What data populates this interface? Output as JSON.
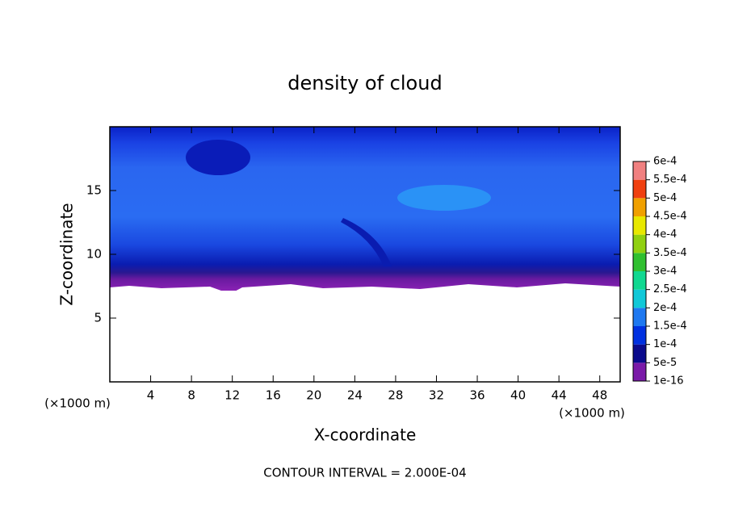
{
  "chart_data": {
    "type": "contour",
    "title": "density of cloud",
    "x_label": "X-coordinate",
    "y_label": "Z-coordinate",
    "x_unit": "(×1000 m)",
    "y_unit": "(×1000 m)",
    "footer": "CONTOUR INTERVAL = 2.000E-04",
    "xlim": [
      0,
      50
    ],
    "ylim": [
      0,
      20
    ],
    "xticks": [
      4,
      8,
      12,
      16,
      20,
      24,
      28,
      32,
      36,
      40,
      44,
      48
    ],
    "yticks": [
      5,
      10,
      15
    ],
    "colorbar": {
      "levels": [
        {
          "value": 1e-16,
          "label": "1e-16"
        },
        {
          "value": 5e-05,
          "label": "5e-5"
        },
        {
          "value": 0.0001,
          "label": "1e-4"
        },
        {
          "value": 0.00015,
          "label": "1.5e-4"
        },
        {
          "value": 0.0002,
          "label": "2e-4"
        },
        {
          "value": 0.00025,
          "label": "2.5e-4"
        },
        {
          "value": 0.0003,
          "label": "3e-4"
        },
        {
          "value": 0.00035,
          "label": "3.5e-4"
        },
        {
          "value": 0.0004,
          "label": "4e-4"
        },
        {
          "value": 0.00045,
          "label": "4.5e-4"
        },
        {
          "value": 0.0005,
          "label": "5e-4"
        },
        {
          "value": 0.00055,
          "label": "5.5e-4"
        },
        {
          "value": 0.0006,
          "label": "6e-4"
        }
      ],
      "colors": [
        "#7a1aa8",
        "#0a0a8c",
        "#0030e0",
        "#1e78f0",
        "#10c8d8",
        "#10d890",
        "#30c030",
        "#90d010",
        "#e8e800",
        "#f0a000",
        "#f04010",
        "#f08080"
      ]
    }
  }
}
